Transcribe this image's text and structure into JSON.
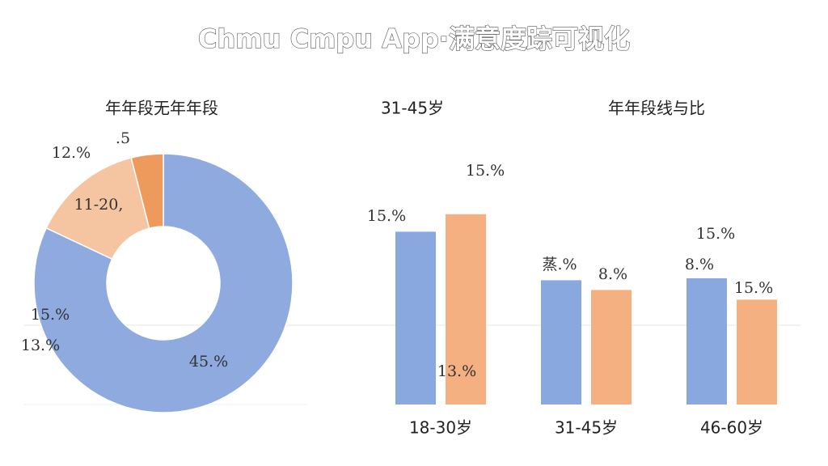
{
  "title": "Chmu Cmpu App·满意度踪可视化",
  "chart_data": [
    {
      "type": "pie",
      "donut": true,
      "subtitle": "年年段无年年段",
      "values": [
        82,
        14,
        4
      ],
      "colors": [
        "#8eaadf",
        "#f5c4a0",
        "#ee9a5c"
      ],
      "annotations": [
        "12.%",
        ".5",
        "11-20,",
        "15.%",
        "13.%",
        "45.%"
      ]
    },
    {
      "type": "bar",
      "subtitle": "年年段线与比",
      "categories": [
        "18-30岁",
        "31-45岁",
        "46-60岁"
      ],
      "series": [
        {
          "color": "#8aa8e0",
          "values": [
            89,
            64,
            65
          ]
        },
        {
          "color": "#f4b080",
          "values": [
            98,
            59,
            54
          ]
        }
      ],
      "ylim": [
        0,
        100
      ],
      "annotations": [
        "31-45岁",
        "15.%",
        "15.%",
        "13.%",
        "蒸.%",
        "8.%",
        "8.%",
        "15.%",
        "15.%"
      ]
    }
  ]
}
